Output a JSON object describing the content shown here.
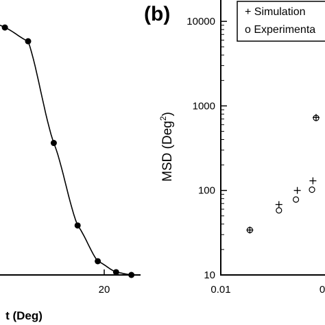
{
  "chart_data": [
    {
      "panel": "",
      "type": "scatter",
      "xlabel": "t (Deg)",
      "x_tick_labels": [
        "20"
      ],
      "xlim": [
        0,
        23
      ],
      "ylim": [
        0,
        1
      ],
      "points": [
        {
          "x": 0.8,
          "y": 0.9
        },
        {
          "x": 4.6,
          "y": 0.85
        },
        {
          "x": 8.8,
          "y": 0.48
        },
        {
          "x": 12.7,
          "y": 0.18
        },
        {
          "x": 16.0,
          "y": 0.05
        },
        {
          "x": 19.0,
          "y": 0.01
        },
        {
          "x": 21.5,
          "y": 0.0
        }
      ],
      "fit_curve": true,
      "colors": {
        "line": "#000000",
        "marker": "#000000"
      }
    },
    {
      "panel": "(b)",
      "type": "scatter",
      "ylabel": "MSD (Deg",
      "ylabel_sup": "2",
      "ylabel_close": ")",
      "y_scale": "log",
      "x_scale": "log",
      "x_tick_labels": [
        "0.01",
        "0"
      ],
      "y_tick_labels": [
        "10",
        "100",
        "1000",
        "10000"
      ],
      "xlim": [
        0.01,
        0.12
      ],
      "ylim": [
        10,
        16000
      ],
      "legend": {
        "placement": "top-right",
        "entries": [
          {
            "marker": "+",
            "label": "+ Simulation"
          },
          {
            "marker": "o",
            "label": "o Experimenta"
          }
        ]
      },
      "series": [
        {
          "name": "Simulation",
          "marker": "+",
          "x": [
            0.02,
            0.04,
            0.062,
            0.09,
            0.097
          ],
          "y": [
            34,
            68,
            100,
            130,
            730
          ]
        },
        {
          "name": "Experimental",
          "marker": "o",
          "x": [
            0.02,
            0.04,
            0.06,
            0.088,
            0.097
          ],
          "y": [
            34,
            58,
            78,
            102,
            720
          ]
        }
      ]
    }
  ]
}
